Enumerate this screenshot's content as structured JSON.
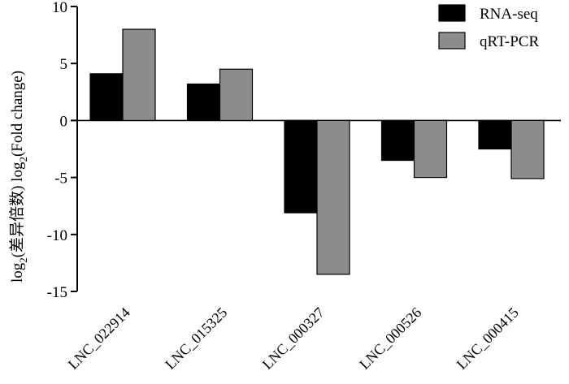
{
  "chart_data": {
    "type": "bar",
    "categories": [
      "LNC_022914",
      "LNC_015325",
      "LNC_000327",
      "LNC_000526",
      "LNC_000415"
    ],
    "series": [
      {
        "name": "RNA-seq",
        "values": [
          4.1,
          3.2,
          -8.1,
          -3.5,
          -2.5
        ],
        "color": "#000000"
      },
      {
        "name": "qRT-PCR",
        "values": [
          8.0,
          4.5,
          -13.5,
          -5.0,
          -5.1
        ],
        "color": "#8c8c8c"
      }
    ],
    "yticks": [
      10,
      5,
      0,
      -5,
      -10,
      -15
    ],
    "ylim": [
      -15,
      10
    ],
    "ylabel_parts": {
      "log": "log",
      "sub": "2",
      "cn": "(差异倍数)",
      "en": "(Fold change)"
    },
    "legend_position": "top-right",
    "grid": false
  }
}
